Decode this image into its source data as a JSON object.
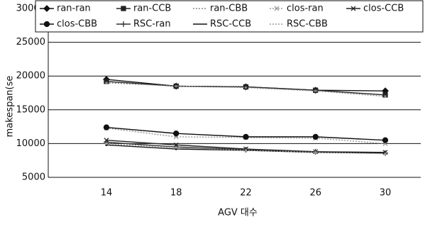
{
  "chart_data": {
    "type": "line",
    "y_label": "makespan(se",
    "x_label": "AGV 대수",
    "categories": [
      "14",
      "18",
      "22",
      "26",
      "30"
    ],
    "ylim": [
      5000,
      30000
    ],
    "yticks": [
      5000,
      10000,
      15000,
      20000,
      25000,
      30000
    ],
    "grid": true,
    "series": [
      {
        "name": "ran-ran",
        "color": "#111",
        "dash": "solid",
        "marker": "diamond",
        "values": [
          19500,
          18500,
          18400,
          17900,
          17800
        ]
      },
      {
        "name": "ran-CCB",
        "color": "#222",
        "dash": "solid",
        "marker": "square",
        "values": [
          19200,
          18500,
          18400,
          17900,
          17200
        ]
      },
      {
        "name": "ran-CBB",
        "color": "#888",
        "dash": "dotted",
        "marker": "none",
        "values": [
          19000,
          18500,
          18300,
          17800,
          17000
        ]
      },
      {
        "name": "clos-ran",
        "color": "#999",
        "dash": "dotted",
        "marker": "x",
        "values": [
          12300,
          11000,
          10900,
          10800,
          10000
        ]
      },
      {
        "name": "clos-CCB",
        "color": "#222",
        "dash": "solid",
        "marker": "x",
        "values": [
          10500,
          9800,
          9200,
          8800,
          8700
        ]
      },
      {
        "name": "clos-CBB",
        "color": "#111",
        "dash": "solid",
        "marker": "circle",
        "values": [
          12400,
          11500,
          11000,
          11000,
          10500
        ]
      },
      {
        "name": "RSC-ran",
        "color": "#333",
        "dash": "solid",
        "marker": "plus",
        "values": [
          10200,
          9500,
          9100,
          8800,
          8600
        ]
      },
      {
        "name": "RSC-CCB",
        "color": "#111",
        "dash": "solid",
        "marker": "none",
        "values": [
          9800,
          9200,
          9000,
          8700,
          8600
        ]
      },
      {
        "name": "RSC-CBB",
        "color": "#999",
        "dash": "dotted",
        "marker": "none",
        "values": [
          10000,
          9400,
          9000,
          8700,
          8500
        ]
      }
    ]
  }
}
